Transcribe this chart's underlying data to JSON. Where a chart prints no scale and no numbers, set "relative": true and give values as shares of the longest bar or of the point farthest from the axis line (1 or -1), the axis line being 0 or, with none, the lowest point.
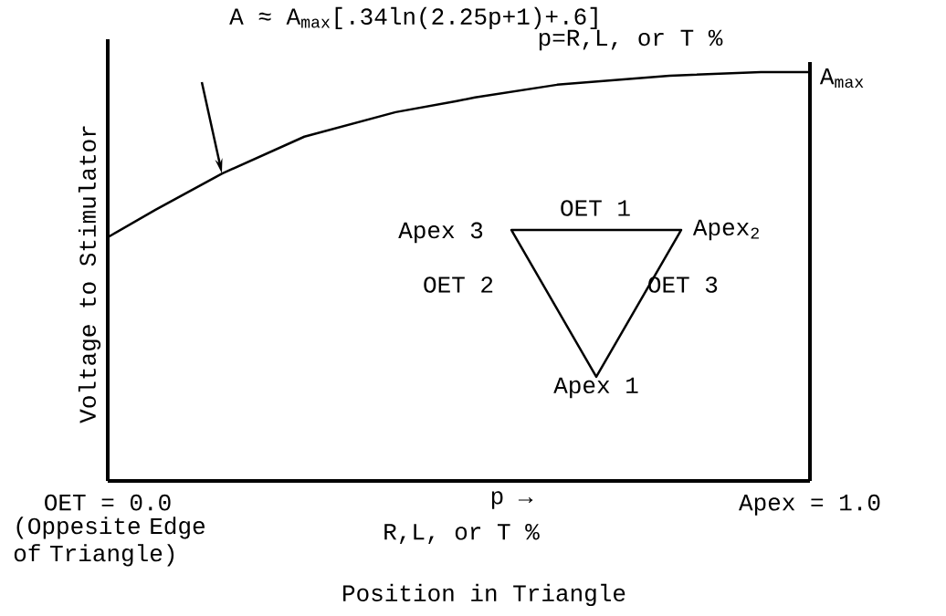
{
  "chart_data": {
    "type": "line",
    "title": "A ≈ A$_{max}$[.34ln(2.25p+1)+.6]",
    "xlabel": "Position in Triangle",
    "ylabel": "Voltage to Stimulator",
    "x": [
      0,
      0.068,
      0.163,
      0.28,
      0.41,
      0.497,
      0.523,
      0.64,
      0.8,
      0.93,
      1
    ],
    "series": [
      {
        "color": "#000000",
        "values": [
          0.596,
          0.663,
          0.752,
          0.842,
          0.902,
          0.929,
          0.938,
          0.969,
          0.991,
          1.0,
          1.0
        ]
      }
    ],
    "relative": true,
    "line_style": "solid",
    "xlim": [
      0,
      1
    ],
    "xticks": [
      {
        "value": 0,
        "label": "OET = 0.0"
      },
      {
        "value": 1,
        "label": "Apex = 1.0"
      }
    ],
    "tick_labels": "x",
    "annotations": [
      "p=R,L, or T %",
      {
        "text": "A$_{max}$",
        "x": 1,
        "y": 1
      },
      "OET 1",
      "Apex 3",
      "Apex$_{2}$",
      "OET 2",
      "OET 3",
      "Apex 1",
      "(Oppesite Edge of Triangle)",
      "p →",
      "R,L, or T %"
    ]
  }
}
